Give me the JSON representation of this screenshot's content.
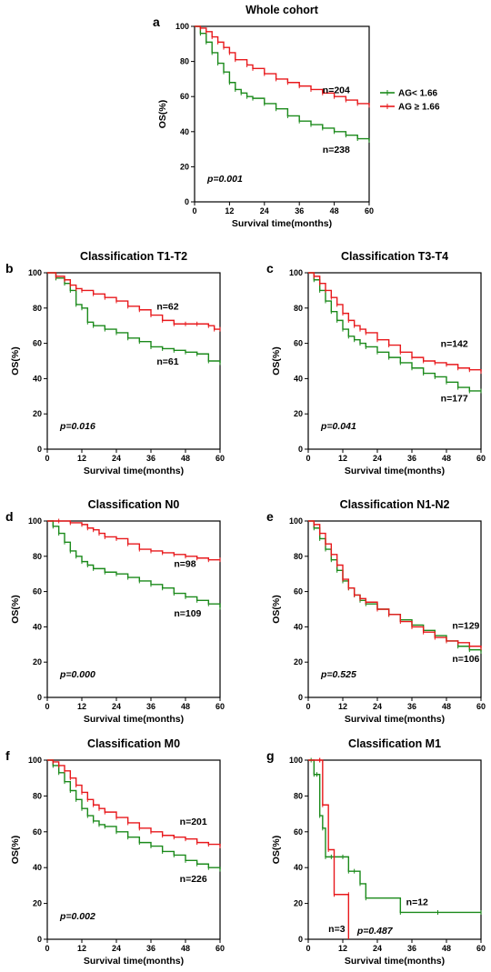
{
  "chart_data": [
    {
      "id": "a",
      "type": "line",
      "letter": "a",
      "title": "Whole cohort",
      "xlabel": "Survival time(months)",
      "ylabel": "OS(%)",
      "xlim": [
        0,
        60
      ],
      "ylim": [
        0,
        100
      ],
      "xticks": [
        "0",
        "12",
        "24",
        "36",
        "48",
        "60"
      ],
      "yticks": [
        "0",
        "20",
        "40",
        "60",
        "80",
        "100"
      ],
      "pvalue": "p=0.001",
      "legend": [
        {
          "label": "AG< 1.66",
          "color": "#1b8a1b"
        },
        {
          "label": "AG ≥ 1.66",
          "color": "#e8191c"
        }
      ],
      "annotations": [
        {
          "text": "n=204",
          "x": 44,
          "y": 62
        },
        {
          "text": "n=238",
          "x": 44,
          "y": 28
        }
      ],
      "series": [
        {
          "group": "AG< 1.66",
          "color": "#1b8a1b",
          "x": [
            0,
            2,
            4,
            6,
            8,
            10,
            12,
            14,
            16,
            18,
            20,
            24,
            28,
            32,
            36,
            40,
            44,
            48,
            52,
            56,
            60
          ],
          "y": [
            100,
            96,
            91,
            85,
            79,
            74,
            68,
            64,
            62,
            60,
            59,
            56,
            53,
            49,
            46,
            44,
            42,
            40,
            38,
            36,
            35
          ]
        },
        {
          "group": "AG ≥ 1.66",
          "color": "#e8191c",
          "x": [
            0,
            2,
            4,
            6,
            8,
            10,
            12,
            14,
            18,
            20,
            24,
            28,
            32,
            36,
            40,
            44,
            48,
            52,
            56,
            60
          ],
          "y": [
            100,
            99,
            97,
            94,
            91,
            88,
            85,
            81,
            78,
            76,
            73,
            70,
            68,
            66,
            64,
            62,
            60,
            58,
            56,
            55
          ]
        }
      ]
    },
    {
      "id": "b",
      "type": "line",
      "letter": "b",
      "title": "Classification T1-T2",
      "xlabel": "Survival time(months)",
      "ylabel": "OS(%)",
      "xlim": [
        0,
        60
      ],
      "ylim": [
        0,
        100
      ],
      "xticks": [
        "0",
        "12",
        "24",
        "36",
        "48",
        "60"
      ],
      "yticks": [
        "0",
        "20",
        "40",
        "60",
        "80",
        "100"
      ],
      "pvalue": "p=0.016",
      "annotations": [
        {
          "text": "n=62",
          "x": 38,
          "y": 79
        },
        {
          "text": "n=61",
          "x": 38,
          "y": 48
        }
      ],
      "series": [
        {
          "group": "AG< 1.66",
          "color": "#1b8a1b",
          "x": [
            0,
            3,
            6,
            8,
            10,
            12,
            14,
            16,
            20,
            24,
            28,
            32,
            36,
            40,
            44,
            48,
            52,
            56,
            60
          ],
          "y": [
            100,
            97,
            94,
            90,
            82,
            80,
            72,
            70,
            68,
            66,
            63,
            61,
            58,
            57,
            56,
            55,
            54,
            50,
            49
          ]
        },
        {
          "group": "AG ≥ 1.66",
          "color": "#e8191c",
          "x": [
            0,
            3,
            6,
            8,
            10,
            12,
            16,
            20,
            24,
            28,
            32,
            36,
            40,
            44,
            48,
            52,
            56,
            58,
            60
          ],
          "y": [
            100,
            98,
            96,
            93,
            91,
            90,
            88,
            86,
            84,
            81,
            79,
            76,
            73,
            71,
            71,
            71,
            70,
            68,
            68
          ]
        }
      ]
    },
    {
      "id": "c",
      "type": "line",
      "letter": "c",
      "title": "Classification T3-T4",
      "xlabel": "Survival time(months)",
      "ylabel": "OS(%)",
      "xlim": [
        0,
        60
      ],
      "ylim": [
        0,
        100
      ],
      "xticks": [
        "0",
        "12",
        "24",
        "36",
        "48",
        "60"
      ],
      "yticks": [
        "0",
        "20",
        "40",
        "60",
        "80",
        "100"
      ],
      "pvalue": "p=0.041",
      "annotations": [
        {
          "text": "n=142",
          "x": 46,
          "y": 58
        },
        {
          "text": "n=177",
          "x": 46,
          "y": 27
        }
      ],
      "series": [
        {
          "group": "AG< 1.66",
          "color": "#1b8a1b",
          "x": [
            0,
            2,
            4,
            6,
            8,
            10,
            12,
            14,
            16,
            18,
            20,
            24,
            28,
            32,
            36,
            40,
            44,
            48,
            52,
            56,
            60
          ],
          "y": [
            100,
            96,
            90,
            84,
            78,
            73,
            68,
            64,
            62,
            60,
            58,
            55,
            52,
            49,
            46,
            43,
            41,
            38,
            35,
            33,
            33
          ]
        },
        {
          "group": "AG ≥ 1.66",
          "color": "#e8191c",
          "x": [
            0,
            2,
            4,
            6,
            8,
            10,
            12,
            14,
            16,
            18,
            20,
            24,
            28,
            32,
            36,
            40,
            44,
            48,
            52,
            56,
            60
          ],
          "y": [
            100,
            98,
            94,
            90,
            86,
            82,
            77,
            73,
            70,
            68,
            66,
            62,
            59,
            55,
            52,
            50,
            49,
            48,
            46,
            45,
            44
          ]
        }
      ]
    },
    {
      "id": "d",
      "type": "line",
      "letter": "d",
      "title": "Classification N0",
      "xlabel": "Survival time(months)",
      "ylabel": "OS(%)",
      "xlim": [
        0,
        60
      ],
      "ylim": [
        0,
        100
      ],
      "xticks": [
        "0",
        "12",
        "24",
        "36",
        "48",
        "60"
      ],
      "yticks": [
        "0",
        "20",
        "40",
        "60",
        "80",
        "100"
      ],
      "pvalue": "p=0.000",
      "annotations": [
        {
          "text": "n=98",
          "x": 44,
          "y": 74
        },
        {
          "text": "n=109",
          "x": 44,
          "y": 46
        }
      ],
      "series": [
        {
          "group": "AG< 1.66",
          "color": "#1b8a1b",
          "x": [
            0,
            2,
            4,
            6,
            8,
            10,
            12,
            14,
            16,
            20,
            24,
            28,
            32,
            36,
            40,
            44,
            48,
            52,
            56,
            60
          ],
          "y": [
            100,
            97,
            93,
            88,
            83,
            80,
            77,
            75,
            73,
            71,
            70,
            68,
            66,
            64,
            62,
            59,
            57,
            55,
            53,
            51
          ]
        },
        {
          "group": "AG ≥ 1.66",
          "color": "#e8191c",
          "x": [
            0,
            4,
            8,
            12,
            14,
            16,
            18,
            20,
            24,
            28,
            32,
            36,
            40,
            44,
            48,
            52,
            56,
            60
          ],
          "y": [
            100,
            100,
            99,
            98,
            96,
            95,
            93,
            91,
            90,
            87,
            84,
            83,
            82,
            81,
            80,
            79,
            78,
            78
          ]
        }
      ]
    },
    {
      "id": "e",
      "type": "line",
      "letter": "e",
      "title": "Classification N1-N2",
      "xlabel": "Survival time(months)",
      "ylabel": "OS(%)",
      "xlim": [
        0,
        60
      ],
      "ylim": [
        0,
        100
      ],
      "xticks": [
        "0",
        "12",
        "24",
        "36",
        "48",
        "60"
      ],
      "yticks": [
        "0",
        "20",
        "40",
        "60",
        "80",
        "100"
      ],
      "pvalue": "p=0.525",
      "annotations": [
        {
          "text": "n=129",
          "x": 50,
          "y": 39
        },
        {
          "text": "n=106",
          "x": 50,
          "y": 20
        }
      ],
      "series": [
        {
          "group": "AG< 1.66",
          "color": "#1b8a1b",
          "x": [
            0,
            2,
            4,
            6,
            8,
            10,
            12,
            14,
            16,
            18,
            20,
            24,
            28,
            32,
            36,
            40,
            44,
            48,
            52,
            56,
            60
          ],
          "y": [
            100,
            96,
            90,
            84,
            78,
            72,
            66,
            62,
            58,
            55,
            53,
            50,
            47,
            44,
            41,
            38,
            35,
            32,
            29,
            27,
            26
          ]
        },
        {
          "group": "AG ≥ 1.66",
          "color": "#e8191c",
          "x": [
            0,
            2,
            4,
            6,
            8,
            10,
            12,
            14,
            16,
            18,
            20,
            24,
            28,
            32,
            36,
            40,
            44,
            48,
            52,
            56,
            60
          ],
          "y": [
            100,
            98,
            93,
            87,
            81,
            75,
            67,
            62,
            58,
            56,
            54,
            50,
            47,
            43,
            40,
            37,
            34,
            32,
            31,
            29,
            28
          ]
        }
      ]
    },
    {
      "id": "f",
      "type": "line",
      "letter": "f",
      "title": "Classification M0",
      "xlabel": "Survival time(months)",
      "ylabel": "OS(%)",
      "xlim": [
        0,
        60
      ],
      "ylim": [
        0,
        100
      ],
      "xticks": [
        "0",
        "12",
        "24",
        "36",
        "48",
        "60"
      ],
      "yticks": [
        "0",
        "20",
        "40",
        "60",
        "80",
        "100"
      ],
      "pvalue": "p=0.002",
      "annotations": [
        {
          "text": "n=201",
          "x": 46,
          "y": 64
        },
        {
          "text": "n=226",
          "x": 46,
          "y": 32
        }
      ],
      "series": [
        {
          "group": "AG< 1.66",
          "color": "#1b8a1b",
          "x": [
            0,
            2,
            4,
            6,
            8,
            10,
            12,
            14,
            16,
            18,
            20,
            24,
            28,
            32,
            36,
            40,
            44,
            48,
            52,
            56,
            60
          ],
          "y": [
            100,
            97,
            93,
            88,
            83,
            78,
            73,
            69,
            66,
            64,
            63,
            60,
            57,
            54,
            52,
            49,
            47,
            44,
            42,
            40,
            39
          ]
        },
        {
          "group": "AG ≥ 1.66",
          "color": "#e8191c",
          "x": [
            0,
            2,
            4,
            6,
            8,
            10,
            12,
            14,
            16,
            18,
            20,
            24,
            28,
            32,
            36,
            40,
            44,
            48,
            52,
            56,
            60
          ],
          "y": [
            100,
            99,
            97,
            94,
            90,
            86,
            82,
            78,
            75,
            73,
            71,
            68,
            65,
            62,
            60,
            58,
            57,
            56,
            54,
            53,
            52
          ]
        }
      ]
    },
    {
      "id": "g",
      "type": "line",
      "letter": "g",
      "title": "Classification M1",
      "xlabel": "Survival time(months)",
      "ylabel": "OS(%)",
      "xlim": [
        0,
        60
      ],
      "ylim": [
        0,
        100
      ],
      "xticks": [
        "0",
        "12",
        "24",
        "36",
        "48",
        "60"
      ],
      "yticks": [
        "0",
        "20",
        "40",
        "60",
        "80",
        "100"
      ],
      "pvalue": "p=0.487",
      "annotations": [
        {
          "text": "n=12",
          "x": 34,
          "y": 19
        },
        {
          "text": "n=3",
          "x": 7,
          "y": 4
        }
      ],
      "series": [
        {
          "group": "AG< 1.66",
          "color": "#1b8a1b",
          "x": [
            0,
            1,
            2,
            3,
            4,
            5,
            6,
            8,
            12,
            14,
            16,
            18,
            20,
            32,
            45,
            60
          ],
          "y": [
            100,
            100,
            92,
            92,
            69,
            62,
            46,
            46,
            46,
            38,
            38,
            31,
            23,
            15,
            15,
            15
          ]
        },
        {
          "group": "AG ≥ 1.66",
          "color": "#e8191c",
          "x": [
            0,
            4,
            4,
            5,
            7,
            9,
            14,
            14
          ],
          "y": [
            100,
            100,
            100,
            75,
            50,
            25,
            25,
            0
          ]
        }
      ]
    }
  ]
}
